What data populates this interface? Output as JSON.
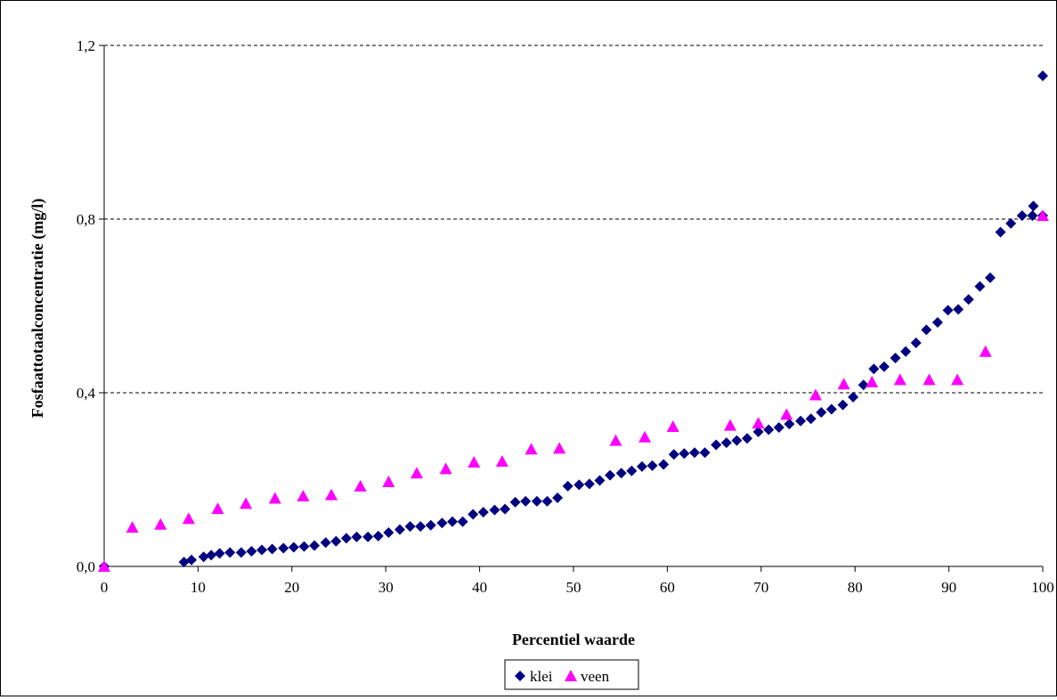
{
  "chart_data": {
    "type": "scatter",
    "xlabel": "Percentiel waarde",
    "ylabel": "Fosfaattotaalconcentratie (mg/l)",
    "xlim": [
      0,
      100
    ],
    "ylim": [
      0,
      1.2
    ],
    "x_ticks": [
      "0",
      "10",
      "20",
      "30",
      "40",
      "50",
      "60",
      "70",
      "80",
      "90",
      "100"
    ],
    "y_ticks": [
      "0,0",
      "0,4",
      "0,8",
      "1,2"
    ],
    "grid": "horizontal dashed",
    "legend_position": "bottom",
    "series": [
      {
        "name": "klei",
        "marker": "diamond",
        "color": "#000080",
        "points": [
          [
            0,
            0.0
          ],
          [
            8.5,
            0.01
          ],
          [
            9.3,
            0.015
          ],
          [
            10.6,
            0.022
          ],
          [
            11.4,
            0.026
          ],
          [
            12.3,
            0.03
          ],
          [
            13.4,
            0.032
          ],
          [
            14.6,
            0.032
          ],
          [
            15.7,
            0.035
          ],
          [
            16.8,
            0.038
          ],
          [
            17.9,
            0.04
          ],
          [
            19.1,
            0.042
          ],
          [
            20.2,
            0.044
          ],
          [
            21.3,
            0.046
          ],
          [
            22.4,
            0.048
          ],
          [
            23.6,
            0.055
          ],
          [
            24.7,
            0.058
          ],
          [
            25.8,
            0.065
          ],
          [
            26.9,
            0.068
          ],
          [
            28.1,
            0.068
          ],
          [
            29.2,
            0.07
          ],
          [
            30.3,
            0.078
          ],
          [
            31.5,
            0.085
          ],
          [
            32.6,
            0.092
          ],
          [
            33.7,
            0.092
          ],
          [
            34.8,
            0.095
          ],
          [
            36.0,
            0.1
          ],
          [
            37.1,
            0.103
          ],
          [
            38.2,
            0.103
          ],
          [
            39.3,
            0.12
          ],
          [
            40.4,
            0.125
          ],
          [
            41.6,
            0.13
          ],
          [
            42.7,
            0.132
          ],
          [
            43.8,
            0.148
          ],
          [
            44.9,
            0.15
          ],
          [
            46.1,
            0.15
          ],
          [
            47.2,
            0.15
          ],
          [
            48.3,
            0.158
          ],
          [
            49.4,
            0.185
          ],
          [
            50.6,
            0.188
          ],
          [
            51.7,
            0.19
          ],
          [
            52.8,
            0.198
          ],
          [
            53.9,
            0.21
          ],
          [
            55.1,
            0.215
          ],
          [
            56.2,
            0.22
          ],
          [
            57.3,
            0.23
          ],
          [
            58.4,
            0.232
          ],
          [
            59.6,
            0.235
          ],
          [
            60.7,
            0.258
          ],
          [
            61.8,
            0.26
          ],
          [
            62.9,
            0.262
          ],
          [
            64.0,
            0.262
          ],
          [
            65.2,
            0.28
          ],
          [
            66.3,
            0.285
          ],
          [
            67.4,
            0.29
          ],
          [
            68.5,
            0.295
          ],
          [
            69.7,
            0.31
          ],
          [
            70.8,
            0.315
          ],
          [
            71.9,
            0.32
          ],
          [
            73.0,
            0.328
          ],
          [
            74.2,
            0.335
          ],
          [
            75.3,
            0.34
          ],
          [
            76.4,
            0.355
          ],
          [
            77.5,
            0.362
          ],
          [
            78.7,
            0.372
          ],
          [
            79.8,
            0.39
          ],
          [
            80.9,
            0.418
          ],
          [
            82.0,
            0.455
          ],
          [
            83.1,
            0.46
          ],
          [
            84.3,
            0.48
          ],
          [
            85.4,
            0.495
          ],
          [
            86.5,
            0.515
          ],
          [
            87.6,
            0.545
          ],
          [
            88.8,
            0.562
          ],
          [
            89.9,
            0.59
          ],
          [
            91.0,
            0.592
          ],
          [
            92.1,
            0.615
          ],
          [
            93.3,
            0.645
          ],
          [
            94.4,
            0.665
          ],
          [
            95.5,
            0.77
          ],
          [
            96.6,
            0.79
          ],
          [
            97.8,
            0.808
          ],
          [
            98.9,
            0.808
          ],
          [
            100.0,
            0.808
          ],
          [
            99.0,
            0.83
          ],
          [
            100.0,
            1.13
          ]
        ]
      },
      {
        "name": "veen",
        "marker": "triangle",
        "color": "#ff00ff",
        "points": [
          [
            0,
            0.0
          ],
          [
            3.0,
            0.09
          ],
          [
            6.0,
            0.097
          ],
          [
            9.0,
            0.11
          ],
          [
            12.1,
            0.133
          ],
          [
            15.1,
            0.145
          ],
          [
            18.2,
            0.157
          ],
          [
            21.2,
            0.162
          ],
          [
            24.2,
            0.165
          ],
          [
            27.3,
            0.185
          ],
          [
            30.3,
            0.195
          ],
          [
            33.3,
            0.215
          ],
          [
            36.4,
            0.225
          ],
          [
            39.4,
            0.24
          ],
          [
            42.4,
            0.242
          ],
          [
            45.5,
            0.27
          ],
          [
            48.5,
            0.272
          ],
          [
            54.5,
            0.29
          ],
          [
            57.6,
            0.298
          ],
          [
            60.6,
            0.322
          ],
          [
            66.7,
            0.325
          ],
          [
            69.7,
            0.33
          ],
          [
            72.7,
            0.35
          ],
          [
            75.8,
            0.395
          ],
          [
            78.8,
            0.42
          ],
          [
            81.8,
            0.425
          ],
          [
            84.8,
            0.43
          ],
          [
            87.9,
            0.43
          ],
          [
            90.9,
            0.43
          ],
          [
            93.9,
            0.495
          ],
          [
            100.0,
            0.808
          ]
        ]
      }
    ]
  }
}
